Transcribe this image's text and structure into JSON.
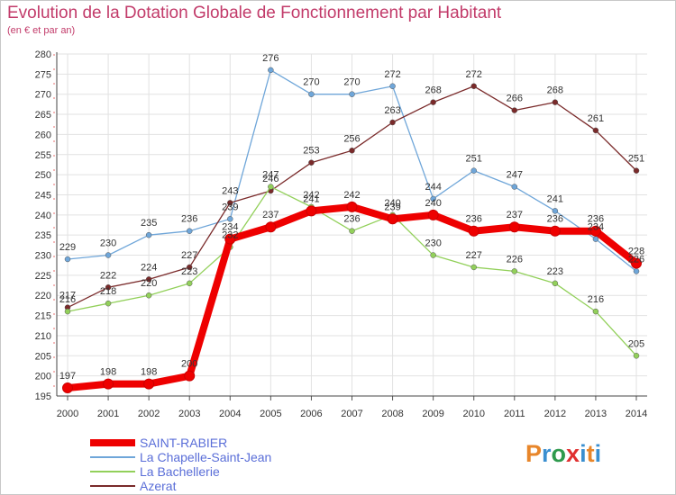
{
  "chart_data": {
    "type": "line",
    "title": "Evolution de la Dotation Globale de Fonctionnement par Habitant",
    "subtitle": "(en € et par an)",
    "x": [
      "2000",
      "2001",
      "2002",
      "2003",
      "2004",
      "2005",
      "2006",
      "2007",
      "2008",
      "2009",
      "2010",
      "2011",
      "2012",
      "2013",
      "2014"
    ],
    "yticks": [
      "195",
      "200",
      "205",
      "210",
      "215",
      "220",
      "225",
      "230",
      "235",
      "240",
      "245",
      "250",
      "255",
      "260",
      "265",
      "270",
      "275",
      "280"
    ],
    "ylim": [
      195,
      280
    ],
    "grid": true,
    "series": [
      {
        "name": "SAINT-RABIER",
        "color": "#ee0000",
        "values": [
          197,
          198,
          198,
          200,
          234,
          237,
          241,
          242,
          239,
          240,
          236,
          237,
          236,
          236,
          228
        ],
        "labels": [
          "197",
          "198",
          "198",
          "200",
          "234",
          "237",
          "241",
          "242",
          "239",
          "240",
          "236",
          "237",
          "236",
          "236",
          "228"
        ]
      },
      {
        "name": "La Chapelle-Saint-Jean",
        "color": "#6fa6d9",
        "values": [
          229,
          230,
          235,
          236,
          239,
          276,
          270,
          270,
          272,
          244,
          251,
          247,
          241,
          234,
          226
        ],
        "labels": [
          "229",
          "230",
          "235",
          "236",
          "239",
          "276",
          "270",
          "270",
          "272",
          "244",
          "251",
          "247",
          "241",
          "234",
          "226"
        ]
      },
      {
        "name": "La Bachellerie",
        "color": "#92d05a",
        "values": [
          216,
          218,
          220,
          223,
          232,
          247,
          242,
          236,
          240,
          230,
          227,
          226,
          223,
          216,
          205
        ],
        "labels": [
          "216",
          "218",
          "220",
          "223",
          "232",
          "247",
          "242",
          "236",
          "240",
          "230",
          "227",
          "226",
          "223",
          "216",
          "205"
        ]
      },
      {
        "name": "Azerat",
        "color": "#7a2a2a",
        "values": [
          217,
          222,
          224,
          227,
          243,
          246,
          253,
          256,
          263,
          268,
          272,
          266,
          268,
          261,
          251
        ],
        "labels": [
          "217",
          "222",
          "224",
          "227",
          "243",
          "246",
          "253",
          "256",
          "263",
          "268",
          "272",
          "266",
          "268",
          "261",
          "251"
        ]
      }
    ]
  },
  "legend": {
    "items": [
      "SAINT-RABIER",
      "La Chapelle-Saint-Jean",
      "La Bachellerie",
      "Azerat"
    ]
  },
  "logo": {
    "p": "P",
    "r": "r",
    "o": "o",
    "x": "x",
    "i": "i",
    "t": "t",
    "i2": "i"
  }
}
